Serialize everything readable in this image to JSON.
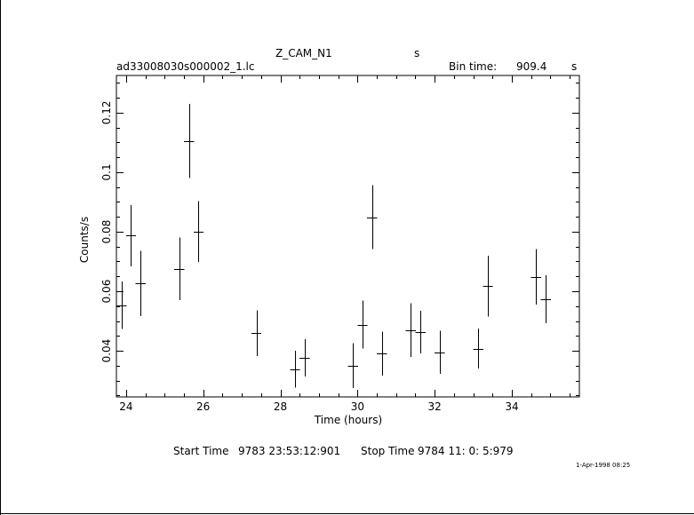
{
  "header": {
    "target_name": "Z_CAM_N1",
    "target_unit": "s",
    "file_name": "ad33008030s000002_1.lc",
    "bin_label": "Bin time:",
    "bin_value": "909.4",
    "bin_unit": "s"
  },
  "footer": {
    "start_label": "Start Time",
    "start_value": "9783 23:53:12:901",
    "stop_label": "Stop Time",
    "stop_value": "9784 11: 0: 5:979",
    "timestamp": "1-Apr-1998 08:25"
  },
  "chart_data": {
    "type": "scatter",
    "title": "",
    "xlabel": "Time (hours)",
    "ylabel": "Counts/s",
    "xlim": [
      23.75,
      35.75
    ],
    "ylim": [
      0.0245,
      0.1325
    ],
    "xticks": [
      24,
      26,
      28,
      30,
      32,
      34
    ],
    "xtick_labels": [
      "24",
      "26",
      "28",
      "30",
      "32",
      "34"
    ],
    "yticks": [
      0.04,
      0.06,
      0.08,
      0.1,
      0.12
    ],
    "ytick_labels": [
      "0.04",
      "0.06",
      "0.08",
      "0.1",
      "0.12"
    ],
    "grid": false,
    "points": [
      {
        "x": 23.88,
        "xerr": 0.13,
        "y": 0.0553,
        "yerr": 0.008
      },
      {
        "x": 24.13,
        "xerr": 0.13,
        "y": 0.0787,
        "yerr": 0.0103
      },
      {
        "x": 24.38,
        "xerr": 0.13,
        "y": 0.0626,
        "yerr": 0.011
      },
      {
        "x": 25.38,
        "xerr": 0.13,
        "y": 0.0675,
        "yerr": 0.0105
      },
      {
        "x": 25.63,
        "xerr": 0.13,
        "y": 0.1105,
        "yerr": 0.0125
      },
      {
        "x": 25.88,
        "xerr": 0.13,
        "y": 0.0801,
        "yerr": 0.0102
      },
      {
        "x": 27.38,
        "xerr": 0.13,
        "y": 0.0459,
        "yerr": 0.0077
      },
      {
        "x": 28.38,
        "xerr": 0.13,
        "y": 0.0338,
        "yerr": 0.0062
      },
      {
        "x": 28.63,
        "xerr": 0.13,
        "y": 0.0376,
        "yerr": 0.0063
      },
      {
        "x": 29.88,
        "xerr": 0.13,
        "y": 0.035,
        "yerr": 0.0075
      },
      {
        "x": 30.13,
        "xerr": 0.13,
        "y": 0.0488,
        "yerr": 0.008
      },
      {
        "x": 30.38,
        "xerr": 0.13,
        "y": 0.0849,
        "yerr": 0.0107
      },
      {
        "x": 30.63,
        "xerr": 0.13,
        "y": 0.0391,
        "yerr": 0.0074
      },
      {
        "x": 31.38,
        "xerr": 0.13,
        "y": 0.047,
        "yerr": 0.009
      },
      {
        "x": 31.63,
        "xerr": 0.13,
        "y": 0.0463,
        "yerr": 0.0072
      },
      {
        "x": 32.13,
        "xerr": 0.13,
        "y": 0.0395,
        "yerr": 0.0072
      },
      {
        "x": 33.13,
        "xerr": 0.13,
        "y": 0.0407,
        "yerr": 0.0067
      },
      {
        "x": 33.38,
        "xerr": 0.13,
        "y": 0.0617,
        "yerr": 0.0102
      },
      {
        "x": 34.63,
        "xerr": 0.13,
        "y": 0.0648,
        "yerr": 0.0093
      },
      {
        "x": 34.88,
        "xerr": 0.13,
        "y": 0.0573,
        "yerr": 0.008
      }
    ]
  }
}
